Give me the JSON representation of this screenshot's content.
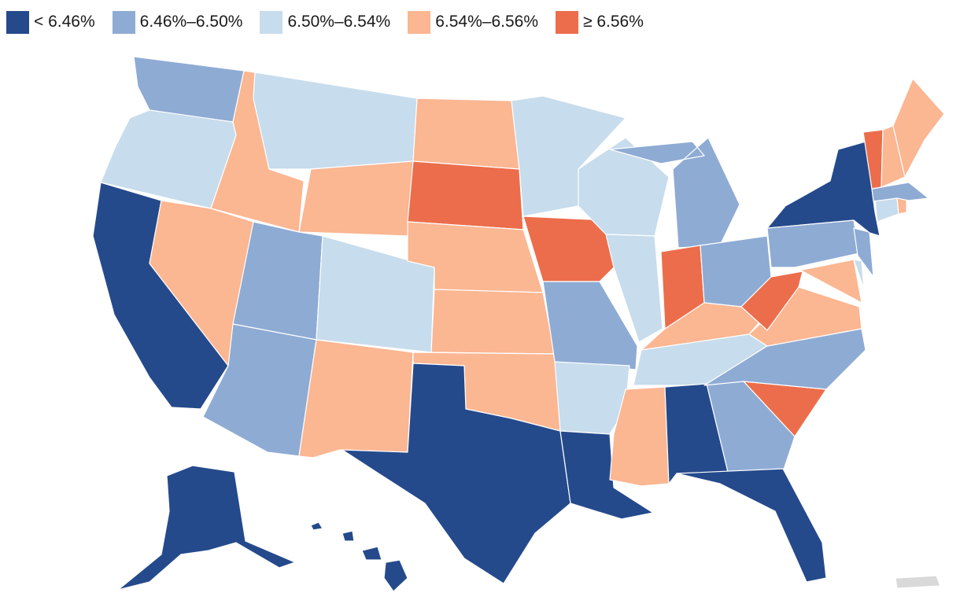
{
  "colors": {
    "b1": "#254a8c",
    "b2": "#8eabd4",
    "b3": "#c7dcec",
    "b4": "#fbb692",
    "b5": "#ec6d4b",
    "nodata": "#d9d9d9"
  },
  "legend": [
    {
      "label": "< 6.46%",
      "bin": "b1"
    },
    {
      "label": "6.46%–6.50%",
      "bin": "b2"
    },
    {
      "label": "6.50%–6.54%",
      "bin": "b3"
    },
    {
      "label": "6.54%–6.56%",
      "bin": "b4"
    },
    {
      "label": "≥ 6.56%",
      "bin": "b5"
    }
  ],
  "states": {
    "WA": "b2",
    "OR": "b3",
    "CA": "b1",
    "ID": "b4",
    "NV": "b4",
    "MT": "b3",
    "WY": "b4",
    "UT": "b2",
    "AZ": "b2",
    "CO": "b3",
    "NM": "b4",
    "ND": "b4",
    "SD": "b5",
    "NE": "b4",
    "KS": "b4",
    "OK": "b4",
    "TX": "b1",
    "MN": "b3",
    "IA": "b5",
    "MO": "b2",
    "AR": "b3",
    "LA": "b1",
    "WI": "b3",
    "IL": "b3",
    "MI": "b2",
    "IN": "b5",
    "OH": "b2",
    "KY": "b4",
    "TN": "b3",
    "MS": "b4",
    "AL": "b1",
    "GA": "b2",
    "FL": "b1",
    "SC": "b5",
    "NC": "b2",
    "VA": "b4",
    "WV": "b5",
    "MD": "b4",
    "DE": "b3",
    "PA": "b2",
    "NJ": "b2",
    "NY": "b1",
    "CT": "b3",
    "RI": "b4",
    "MA": "b2",
    "VT": "b5",
    "NH": "b4",
    "ME": "b4",
    "AK": "b1",
    "HI": "b1",
    "PR": "nodata"
  }
}
